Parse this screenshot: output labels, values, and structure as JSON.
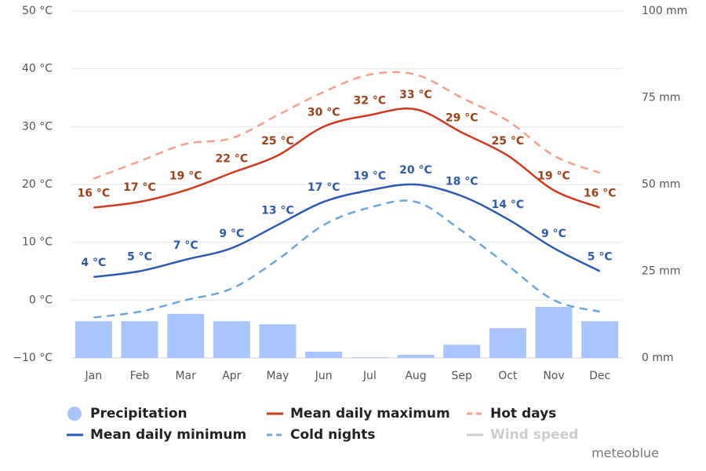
{
  "chart_data": {
    "type": "line",
    "categories": [
      "Jan",
      "Feb",
      "Mar",
      "Apr",
      "May",
      "Jun",
      "Jul",
      "Aug",
      "Sep",
      "Oct",
      "Nov",
      "Dec"
    ],
    "series": [
      {
        "name": "Precipitation",
        "type": "bar",
        "axis": "y2",
        "color": "#a9c4fb",
        "values": [
          10.6,
          10.6,
          12.7,
          10.6,
          9.7,
          1.8,
          0.2,
          0.9,
          3.8,
          8.6,
          14.7,
          10.6
        ]
      },
      {
        "name": "Mean daily maximum",
        "type": "line",
        "color": "#cf3a1c",
        "label_color": "#9e4219",
        "values": [
          16,
          17,
          19,
          22,
          25,
          30,
          32,
          33,
          29,
          25,
          19,
          16
        ],
        "value_labels": [
          "16 °C",
          "17 °C",
          "19 °C",
          "22 °C",
          "25 °C",
          "30 °C",
          "32 °C",
          "33 °C",
          "29 °C",
          "25 °C",
          "19 °C",
          "16 °C"
        ]
      },
      {
        "name": "Hot days",
        "type": "line",
        "dash": true,
        "color": "#f4a08c",
        "values": [
          21,
          24,
          27,
          28,
          32,
          36,
          39,
          39,
          35,
          31,
          25,
          22
        ]
      },
      {
        "name": "Mean daily minimum",
        "type": "line",
        "color": "#2a5ab5",
        "label_color": "#2d5bb0",
        "values": [
          4,
          5,
          7,
          9,
          13,
          17,
          19,
          20,
          18,
          14,
          9,
          5
        ],
        "value_labels": [
          "4 °C",
          "5 °C",
          "7 °C",
          "9 °C",
          "13 °C",
          "17 °C",
          "19 °C",
          "20 °C",
          "18 °C",
          "14 °C",
          "9 °C",
          "5 °C"
        ]
      },
      {
        "name": "Cold nights",
        "type": "line",
        "dash": true,
        "color": "#6aa7dc",
        "values": [
          -3,
          -2,
          0,
          2,
          7,
          13,
          16,
          17,
          12,
          6,
          0,
          -2
        ]
      },
      {
        "name": "Wind speed",
        "type": "line",
        "hidden": true,
        "color": "#cccccc",
        "values": [
          null,
          null,
          null,
          null,
          null,
          null,
          null,
          null,
          null,
          null,
          null,
          null
        ]
      }
    ],
    "ylim": [
      -10,
      50
    ],
    "yticks": [
      {
        "value": -10,
        "label": "−10 °C"
      },
      {
        "value": 0,
        "label": "0 °C"
      },
      {
        "value": 10,
        "label": "10 °C"
      },
      {
        "value": 20,
        "label": "20 °C"
      },
      {
        "value": 30,
        "label": "30 °C"
      },
      {
        "value": 40,
        "label": "40 °C"
      },
      {
        "value": 50,
        "label": "50 °C"
      }
    ],
    "y2lim": [
      0,
      100
    ],
    "y2ticks": [
      {
        "value": 0,
        "label": "0 mm"
      },
      {
        "value": 25,
        "label": "25 mm"
      },
      {
        "value": 50,
        "label": "50 mm"
      },
      {
        "value": 75,
        "label": "75 mm"
      },
      {
        "value": 100,
        "label": "100 mm"
      }
    ],
    "grid": true,
    "credit": "meteoblue"
  }
}
